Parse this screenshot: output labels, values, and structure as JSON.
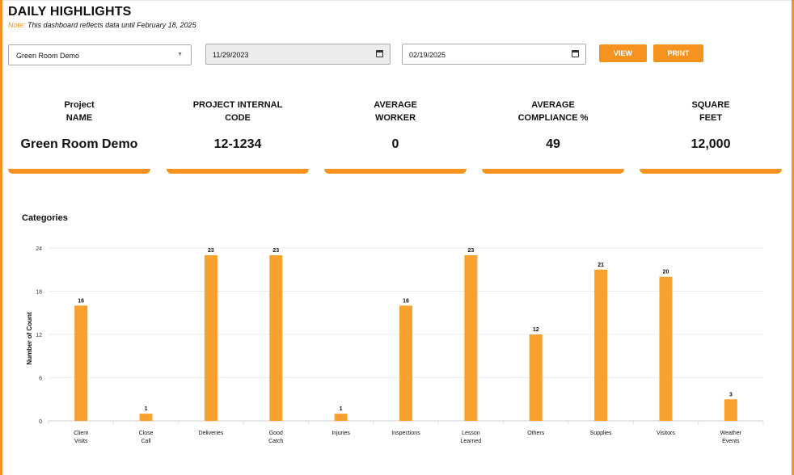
{
  "header": {
    "title": "DAILY HIGHLIGHTS",
    "note_label": "Note:",
    "note_text": "This dashboard reflects data until February 18, 2025"
  },
  "filters": {
    "project": "Green Room Demo",
    "start_date": "11/29/2023",
    "end_date": "02/19/2025",
    "view_label": "VIEW",
    "print_label": "PRINT"
  },
  "colors": {
    "accent": "#f5931e",
    "bar": "#f9a12e"
  },
  "stats": [
    {
      "label_line1": "Project",
      "label_line2": "NAME",
      "value": "Green Room Demo"
    },
    {
      "label_line1": "PROJECT INTERNAL",
      "label_line2": "CODE",
      "value": "12-1234"
    },
    {
      "label_line1": "AVERAGE",
      "label_line2": "WORKER",
      "value": "0"
    },
    {
      "label_line1": "AVERAGE",
      "label_line2": "COMPLIANCE %",
      "value": "49"
    },
    {
      "label_line1": "SQUARE",
      "label_line2": "FEET",
      "value": "12,000"
    }
  ],
  "categories_title": "Categories",
  "chart_data": {
    "type": "bar",
    "categories": [
      [
        "Client",
        "Visits"
      ],
      [
        "Close",
        "Call"
      ],
      [
        "Deliveries"
      ],
      [
        "Good",
        "Catch"
      ],
      [
        "Injuries"
      ],
      [
        "Inspections"
      ],
      [
        "Lesson",
        "Learned"
      ],
      [
        "Others"
      ],
      [
        "Supplies"
      ],
      [
        "Visitors"
      ],
      [
        "Weather",
        "Events"
      ]
    ],
    "values": [
      16,
      1,
      23,
      23,
      1,
      16,
      23,
      12,
      21,
      20,
      3
    ],
    "ylabel": "Number of Count",
    "yticks": [
      0,
      6,
      12,
      18,
      24
    ],
    "ylim": [
      0,
      24
    ],
    "grid": "horizontal"
  }
}
